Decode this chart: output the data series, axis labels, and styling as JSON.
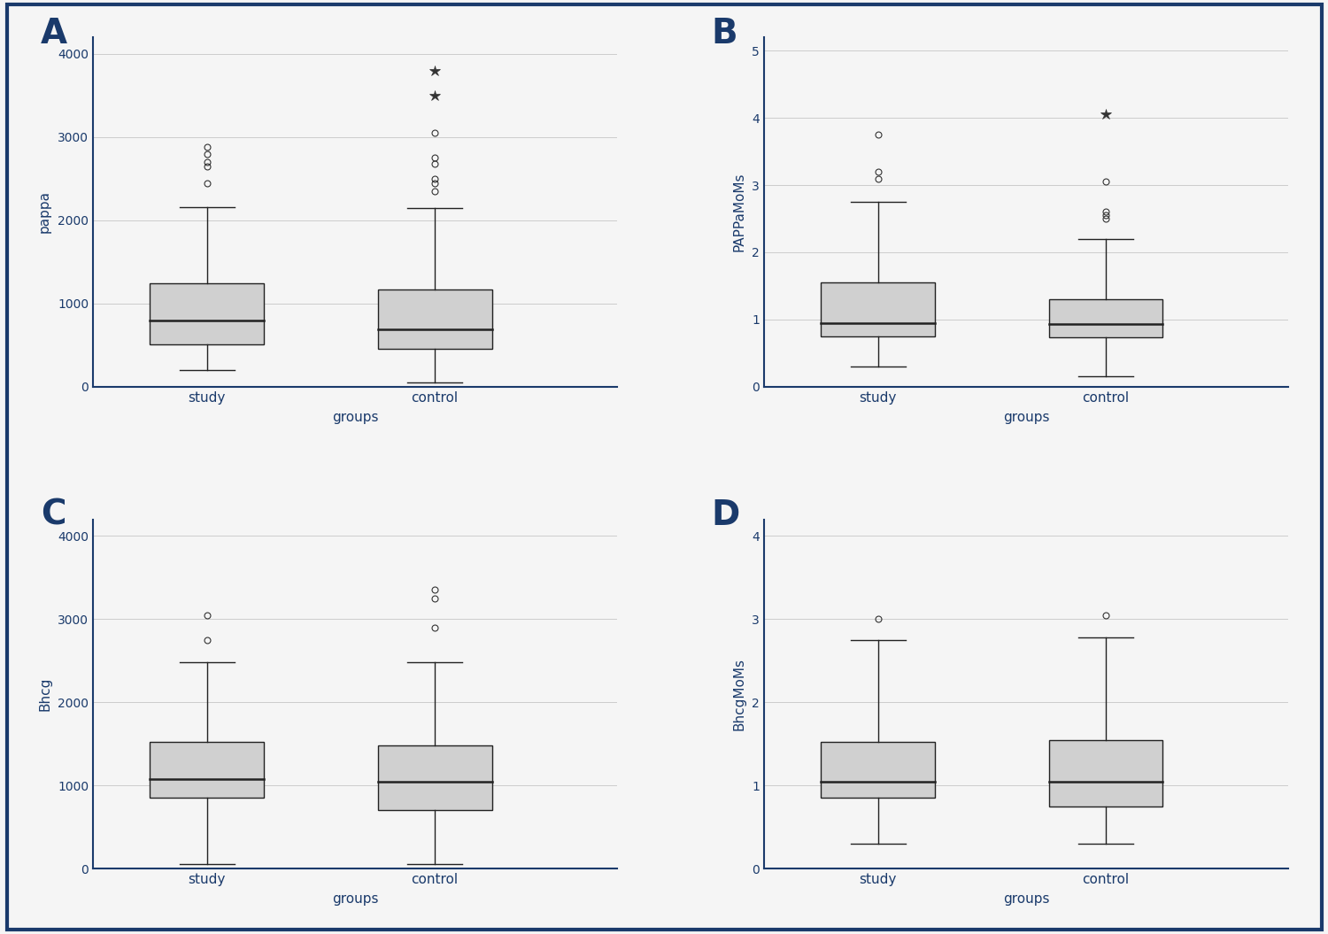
{
  "background_color": "#f5f5f5",
  "border_color": "#1a3a6b",
  "panel_labels": [
    "A",
    "B",
    "C",
    "D"
  ],
  "label_color": "#1a3a6b",
  "box_color": "#d0d0d0",
  "box_edge_color": "#222222",
  "median_color": "#222222",
  "whisker_color": "#222222",
  "flier_circle_color": "#333333",
  "flier_star_color": "#333333",
  "text_color": "#1a3a6b",
  "grid_color": "#cccccc",
  "axis_color": "#1a3a6b",
  "A": {
    "ylabel": "pappa",
    "xlabel": "groups",
    "ylim": [
      0,
      4200
    ],
    "yticks": [
      0,
      1000,
      2000,
      3000,
      4000
    ],
    "categories": [
      "study",
      "control"
    ],
    "study": {
      "q1": 510,
      "median": 800,
      "q3": 1240,
      "whisker_low": 200,
      "whisker_high": 2160,
      "fliers_circle": [
        2450,
        2650,
        2700,
        2800,
        2880
      ],
      "fliers_star": []
    },
    "control": {
      "q1": 450,
      "median": 690,
      "q3": 1170,
      "whisker_low": 50,
      "whisker_high": 2150,
      "fliers_circle": [
        2350,
        2450,
        2500,
        2680,
        2750,
        3050
      ],
      "fliers_star": [
        3500,
        3800
      ]
    }
  },
  "B": {
    "ylabel": "PAPPaMoMs",
    "xlabel": "groups",
    "ylim": [
      0,
      5.2
    ],
    "yticks": [
      0,
      1,
      2,
      3,
      4,
      5
    ],
    "categories": [
      "study",
      "control"
    ],
    "study": {
      "q1": 0.75,
      "median": 0.95,
      "q3": 1.55,
      "whisker_low": 0.3,
      "whisker_high": 2.75,
      "fliers_circle": [
        3.1,
        3.2,
        3.75
      ],
      "fliers_star": []
    },
    "control": {
      "q1": 0.73,
      "median": 0.93,
      "q3": 1.3,
      "whisker_low": 0.15,
      "whisker_high": 2.2,
      "fliers_circle": [
        2.5,
        2.55,
        2.6,
        3.05
      ],
      "fliers_star": [
        4.05
      ]
    }
  },
  "C": {
    "ylabel": "Bhcg",
    "xlabel": "groups",
    "ylim": [
      0,
      4200
    ],
    "yticks": [
      0,
      1000,
      2000,
      3000,
      4000
    ],
    "categories": [
      "study",
      "control"
    ],
    "study": {
      "q1": 850,
      "median": 1080,
      "q3": 1520,
      "whisker_low": 50,
      "whisker_high": 2480,
      "fliers_circle": [
        2750,
        3050
      ],
      "fliers_star": []
    },
    "control": {
      "q1": 700,
      "median": 1040,
      "q3": 1480,
      "whisker_low": 50,
      "whisker_high": 2480,
      "fliers_circle": [
        2900,
        3250,
        3350
      ],
      "fliers_star": []
    }
  },
  "D": {
    "ylabel": "BhcgMoMs",
    "xlabel": "groups",
    "ylim": [
      0,
      4.2
    ],
    "yticks": [
      0,
      1,
      2,
      3,
      4
    ],
    "categories": [
      "study",
      "control"
    ],
    "study": {
      "q1": 0.85,
      "median": 1.05,
      "q3": 1.52,
      "whisker_low": 0.3,
      "whisker_high": 2.75,
      "fliers_circle": [
        3.0
      ],
      "fliers_star": []
    },
    "control": {
      "q1": 0.75,
      "median": 1.05,
      "q3": 1.55,
      "whisker_low": 0.3,
      "whisker_high": 2.78,
      "fliers_circle": [
        3.05
      ],
      "fliers_star": []
    }
  }
}
